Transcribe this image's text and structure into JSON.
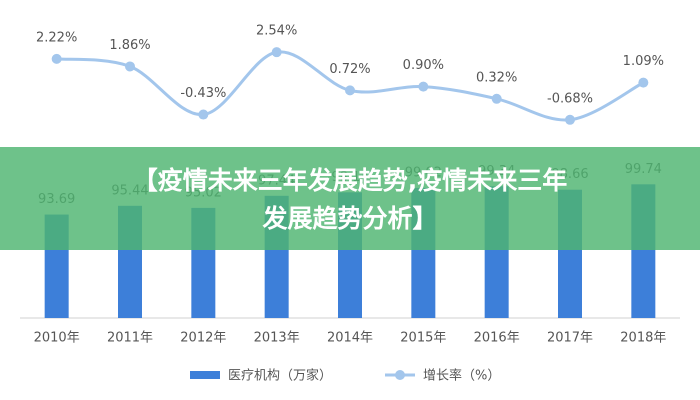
{
  "chart_data": {
    "type": "bar-line",
    "categories": [
      "2010年",
      "2011年",
      "2012年",
      "2013年",
      "2014年",
      "2015年",
      "2016年",
      "2017年",
      "2018年"
    ],
    "series": [
      {
        "name": "医疗机构（万家）",
        "color": "#3d7fd9",
        "type": "bar",
        "values": [
          93.69,
          95.44,
          95.02,
          97.44,
          98.14,
          99.02,
          99.34,
          98.66,
          99.74
        ]
      },
      {
        "name": "增长率（%）",
        "color": "#a3c6ec",
        "type": "line",
        "axis": "y2",
        "values": [
          2.22,
          1.86,
          -0.43,
          2.54,
          0.72,
          0.9,
          0.32,
          -0.68,
          1.09
        ],
        "value_labels": [
          "2.22%",
          "1.86%",
          "-0.43%",
          "2.54%",
          "0.72%",
          "0.90%",
          "0.32%",
          "-0.68%",
          "1.09%"
        ]
      }
    ],
    "ylim": [
      73,
      105
    ],
    "y2lim": [
      -1.5,
      3.5
    ],
    "legend": "bottom"
  },
  "banner": {
    "lines": [
      "【疫情未来三年发展趋势,疫情未来三年",
      "发展趋势分析】"
    ]
  }
}
